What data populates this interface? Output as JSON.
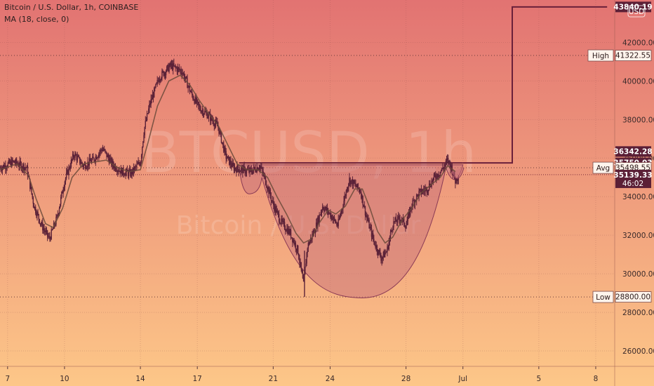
{
  "header": {
    "symbol_line": "Bitcoin / U.S. Dollar, 1h, COINBASE",
    "indicator_line": "MA (18, close, 0)",
    "currency_badge": "USD"
  },
  "watermark": {
    "ticker": "BTCUSD, 1h",
    "name": "Bitcoin / U.S. Dollar"
  },
  "colors": {
    "bg_top": "#e27372",
    "bg_bottom": "#fdc788",
    "candle": "#5b2238",
    "ma_line": "#6b4a3a",
    "pattern_fill": "#c76f7a",
    "pattern_stroke": "#8a3a55",
    "level_line": "#6a1f3a",
    "tag_dark": "#5b1f36"
  },
  "chart_data": {
    "type": "candlestick",
    "title": "Bitcoin / U.S. Dollar, 1h, COINBASE",
    "indicator": "MA (18, close, 0)",
    "x_ticks": [
      "7",
      "10",
      "14",
      "17",
      "21",
      "24",
      "28",
      "Jul",
      "5",
      "8"
    ],
    "x_tick_days": [
      7,
      10,
      14,
      17,
      21,
      24,
      28,
      31,
      35,
      38
    ],
    "y_ticks": [
      42000,
      40000,
      38000,
      36000,
      34000,
      32000,
      30000,
      28000,
      26000
    ],
    "y_tick_labels": [
      "42000.00",
      "40000.00",
      "38000.00",
      "36000.00",
      "34000.00",
      "32000.00",
      "30000.00",
      "28000.00",
      "26000.00"
    ],
    "y_range": [
      25200,
      44200
    ],
    "x_range_days": [
      6.6,
      39.0
    ],
    "price_path": [
      [
        6.6,
        35500
      ],
      [
        7.3,
        35800
      ],
      [
        8.0,
        35500
      ],
      [
        8.4,
        33500
      ],
      [
        8.8,
        32500
      ],
      [
        9.2,
        31800
      ],
      [
        9.6,
        32900
      ],
      [
        10.0,
        34800
      ],
      [
        10.5,
        36200
      ],
      [
        11.0,
        35600
      ],
      [
        11.5,
        35900
      ],
      [
        12.0,
        36500
      ],
      [
        12.5,
        35700
      ],
      [
        13.0,
        35300
      ],
      [
        13.5,
        35200
      ],
      [
        14.0,
        35800
      ],
      [
        14.2,
        37500
      ],
      [
        14.5,
        38800
      ],
      [
        15.0,
        40200
      ],
      [
        15.6,
        40800
      ],
      [
        16.2,
        40500
      ],
      [
        16.7,
        39300
      ],
      [
        17.1,
        38600
      ],
      [
        17.6,
        38200
      ],
      [
        18.1,
        37600
      ],
      [
        18.5,
        36100
      ],
      [
        18.9,
        35500
      ],
      [
        19.3,
        35400
      ],
      [
        19.8,
        35300
      ],
      [
        20.3,
        35600
      ],
      [
        20.6,
        34800
      ],
      [
        21.0,
        33600
      ],
      [
        21.4,
        32700
      ],
      [
        21.9,
        32100
      ],
      [
        22.3,
        31200
      ],
      [
        22.6,
        29400
      ],
      [
        22.8,
        31400
      ],
      [
        23.2,
        32300
      ],
      [
        23.6,
        33500
      ],
      [
        24.0,
        33100
      ],
      [
        24.4,
        32500
      ],
      [
        24.7,
        33700
      ],
      [
        25.0,
        34900
      ],
      [
        25.3,
        34600
      ],
      [
        25.6,
        34300
      ],
      [
        25.9,
        33000
      ],
      [
        26.3,
        31700
      ],
      [
        26.7,
        30800
      ],
      [
        27.0,
        31200
      ],
      [
        27.3,
        32600
      ],
      [
        27.7,
        32900
      ],
      [
        28.0,
        32500
      ],
      [
        28.3,
        33600
      ],
      [
        28.7,
        34200
      ],
      [
        29.1,
        34400
      ],
      [
        29.5,
        35000
      ],
      [
        29.9,
        35400
      ],
      [
        30.2,
        35900
      ],
      [
        30.4,
        35500
      ],
      [
        30.6,
        34800
      ],
      [
        30.8,
        35200
      ]
    ],
    "ma_path": [
      [
        6.6,
        35400
      ],
      [
        7.5,
        35700
      ],
      [
        8.1,
        35100
      ],
      [
        8.5,
        33900
      ],
      [
        9.0,
        32600
      ],
      [
        9.4,
        32400
      ],
      [
        9.9,
        33400
      ],
      [
        10.4,
        35000
      ],
      [
        11.0,
        35700
      ],
      [
        11.6,
        35800
      ],
      [
        12.2,
        35900
      ],
      [
        12.8,
        35500
      ],
      [
        13.4,
        35300
      ],
      [
        14.0,
        35400
      ],
      [
        14.4,
        36800
      ],
      [
        14.9,
        38700
      ],
      [
        15.5,
        40000
      ],
      [
        16.1,
        40300
      ],
      [
        16.6,
        39800
      ],
      [
        17.1,
        39000
      ],
      [
        17.6,
        38300
      ],
      [
        18.1,
        37700
      ],
      [
        18.6,
        36700
      ],
      [
        19.1,
        35700
      ],
      [
        19.6,
        35400
      ],
      [
        20.2,
        35400
      ],
      [
        20.7,
        35000
      ],
      [
        21.2,
        34000
      ],
      [
        21.7,
        33100
      ],
      [
        22.2,
        32100
      ],
      [
        22.6,
        31600
      ],
      [
        23.0,
        31800
      ],
      [
        23.4,
        32600
      ],
      [
        23.9,
        33300
      ],
      [
        24.3,
        33100
      ],
      [
        24.8,
        33500
      ],
      [
        25.3,
        34400
      ],
      [
        25.7,
        34400
      ],
      [
        26.1,
        33400
      ],
      [
        26.5,
        32200
      ],
      [
        26.9,
        31600
      ],
      [
        27.3,
        31900
      ],
      [
        27.8,
        32800
      ],
      [
        28.3,
        33400
      ],
      [
        28.8,
        34200
      ],
      [
        29.3,
        34600
      ],
      [
        29.8,
        35000
      ],
      [
        30.2,
        35600
      ],
      [
        30.6,
        35300
      ]
    ],
    "cup_pattern": {
      "rim_left": [
        19.2,
        35650
      ],
      "left_handle_low": [
        19.8,
        34150
      ],
      "left_shoulder": [
        20.4,
        35000
      ],
      "bottom": [
        25.7,
        28750
      ],
      "right_lip": [
        30.1,
        35500
      ],
      "rim_right": [
        31.0,
        35650
      ]
    },
    "levels": {
      "breakout": 35750.03,
      "target": 43840.19,
      "high": 41322.55,
      "low": 28800.0,
      "avg": 35498.55,
      "last": 35139.33
    },
    "target_segment_days": [
      33.6,
      38.6
    ],
    "price_tags": [
      {
        "label": "",
        "value": "43840.19",
        "price": 43840.19,
        "style": "dark"
      },
      {
        "label": "High",
        "value": "41322.55",
        "price": 41322.55,
        "style": "light"
      },
      {
        "label": "",
        "value": "36342.28",
        "price": 36342.28,
        "style": "dark"
      },
      {
        "label": "",
        "value": "35750.03",
        "price": 35750.03,
        "style": "dark"
      },
      {
        "label": "Avg",
        "value": "35498.55",
        "price": 35498.55,
        "style": "light"
      },
      {
        "label": "",
        "value": "35139.33",
        "sub": "46:02",
        "price": 35139.33,
        "style": "dark"
      },
      {
        "label": "Low",
        "value": "28800.00",
        "price": 28800.0,
        "style": "light"
      }
    ]
  }
}
